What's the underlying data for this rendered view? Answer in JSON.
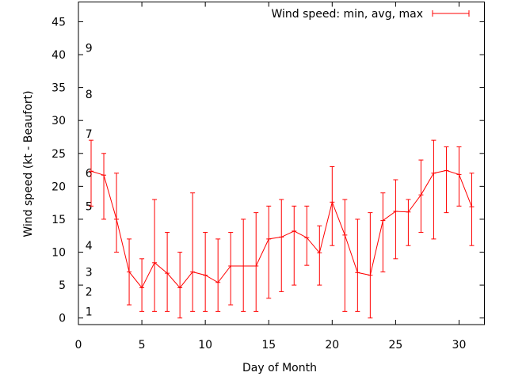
{
  "chart_data": {
    "type": "line",
    "title": "",
    "xlabel": "Day of Month",
    "ylabel": "Wind speed (kt - Beaufort)",
    "xlim": [
      0,
      32
    ],
    "ylim": [
      -1,
      48
    ],
    "x_ticks": [
      0,
      5,
      10,
      15,
      20,
      25,
      30
    ],
    "y_ticks": [
      0,
      5,
      10,
      15,
      20,
      25,
      30,
      35,
      40,
      45
    ],
    "grid": false,
    "legend_position": "top-right",
    "beaufort_markers": [
      {
        "label": "1",
        "y": 1
      },
      {
        "label": "2",
        "y": 4
      },
      {
        "label": "3",
        "y": 7
      },
      {
        "label": "4",
        "y": 11
      },
      {
        "label": "5",
        "y": 17
      },
      {
        "label": "6",
        "y": 22
      },
      {
        "label": "7",
        "y": 28
      },
      {
        "label": "8",
        "y": 34
      },
      {
        "label": "9",
        "y": 41
      }
    ],
    "series": [
      {
        "name": "Wind speed: min, avg, max",
        "color": "#ff0000",
        "x": [
          1,
          2,
          3,
          4,
          5,
          6,
          7,
          8,
          9,
          10,
          11,
          12,
          13,
          14,
          15,
          16,
          17,
          18,
          19,
          20,
          21,
          22,
          23,
          24,
          25,
          26,
          27,
          28,
          29,
          30,
          31
        ],
        "avg": [
          22.3,
          21.7,
          15,
          7,
          4.6,
          8.4,
          6.8,
          4.6,
          7,
          6.5,
          5.4,
          7.9,
          7.9,
          7.9,
          12,
          12.3,
          13.2,
          12.2,
          9.9,
          17.6,
          12.6,
          6.9,
          6.5,
          14.8,
          16.2,
          16.1,
          18.7,
          22,
          22.4,
          21.8,
          16.9
        ],
        "min": [
          17,
          15,
          10,
          2,
          1,
          1,
          1,
          0,
          1,
          1,
          1,
          2,
          1,
          1,
          3,
          4,
          5,
          8,
          5,
          11,
          1,
          1,
          0,
          7,
          9,
          11,
          13,
          12,
          16,
          17,
          11
        ],
        "max": [
          27,
          25,
          22,
          12,
          9,
          18,
          13,
          10,
          19,
          13,
          12,
          13,
          15,
          16,
          17,
          18,
          17,
          17,
          14,
          23,
          18,
          15,
          16,
          19,
          21,
          18,
          24,
          27,
          26,
          26,
          22
        ]
      }
    ]
  }
}
